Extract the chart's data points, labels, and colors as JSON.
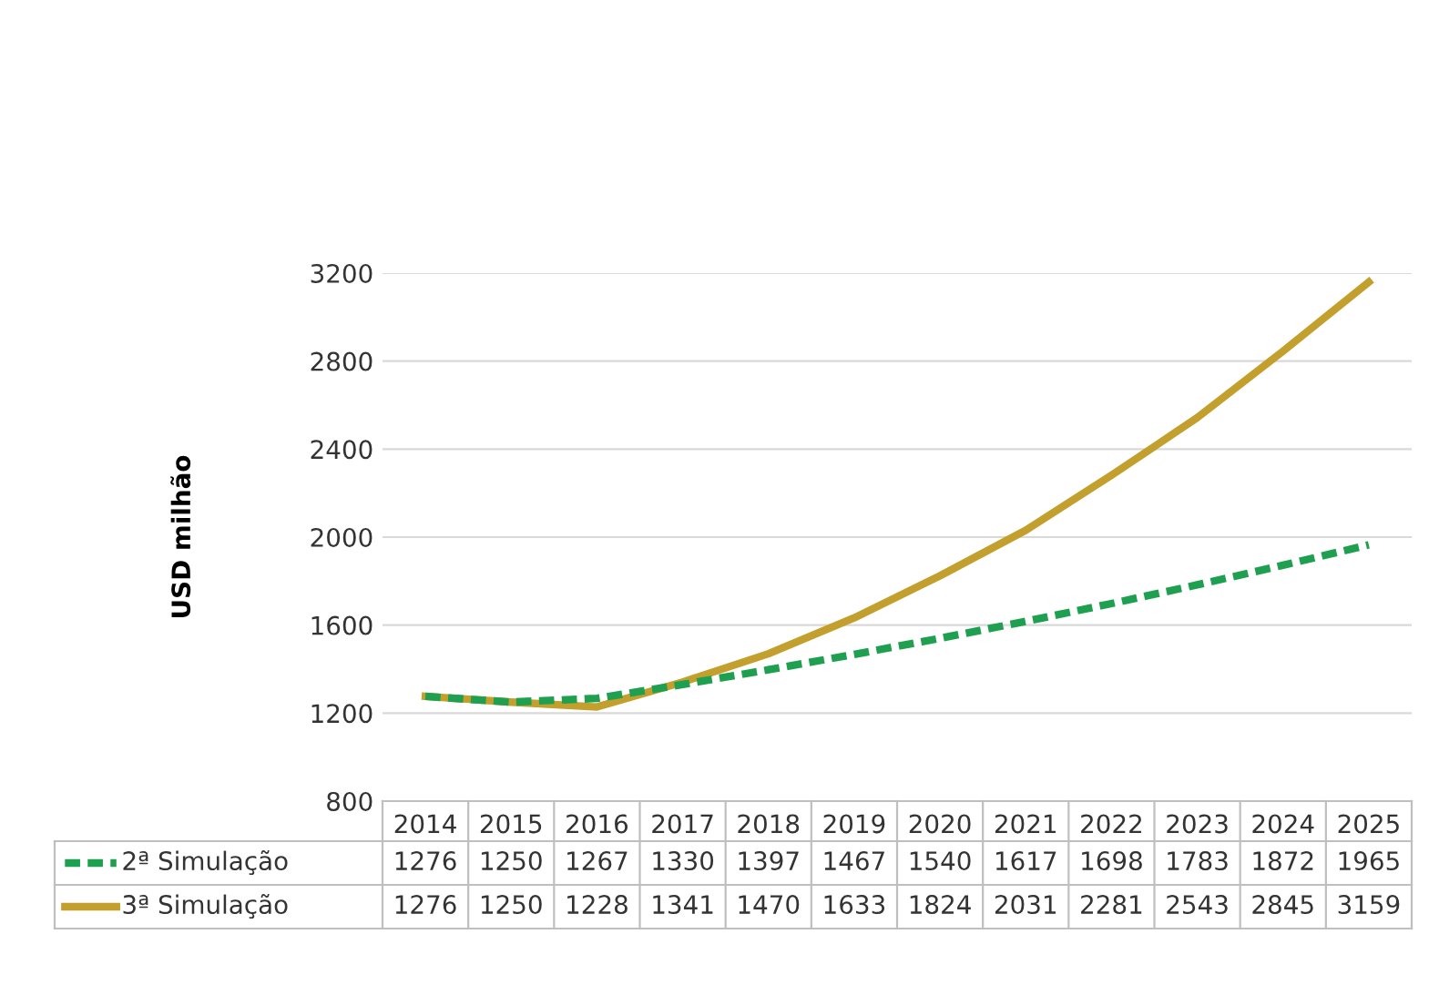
{
  "chart_data": {
    "type": "line",
    "ylabel": "USD milhão",
    "categories": [
      "2014",
      "2015",
      "2016",
      "2017",
      "2018",
      "2019",
      "2020",
      "2021",
      "2022",
      "2023",
      "2024",
      "2025"
    ],
    "series": [
      {
        "name": "2ª Simulação",
        "color": "#1fa050",
        "line_style": "dashed",
        "values": [
          1276,
          1250,
          1267,
          1330,
          1397,
          1467,
          1540,
          1617,
          1698,
          1783,
          1872,
          1965
        ]
      },
      {
        "name": "3ª Simulação",
        "color": "#c3a02e",
        "line_style": "solid",
        "values": [
          1276,
          1250,
          1228,
          1341,
          1470,
          1633,
          1824,
          2031,
          2281,
          2543,
          2845,
          3159
        ]
      }
    ],
    "ylim": [
      800,
      3200
    ],
    "yticks": [
      800,
      1200,
      1600,
      2000,
      2400,
      2800,
      3200
    ],
    "grid": "y",
    "data_labels": true,
    "legend": "bottom"
  }
}
